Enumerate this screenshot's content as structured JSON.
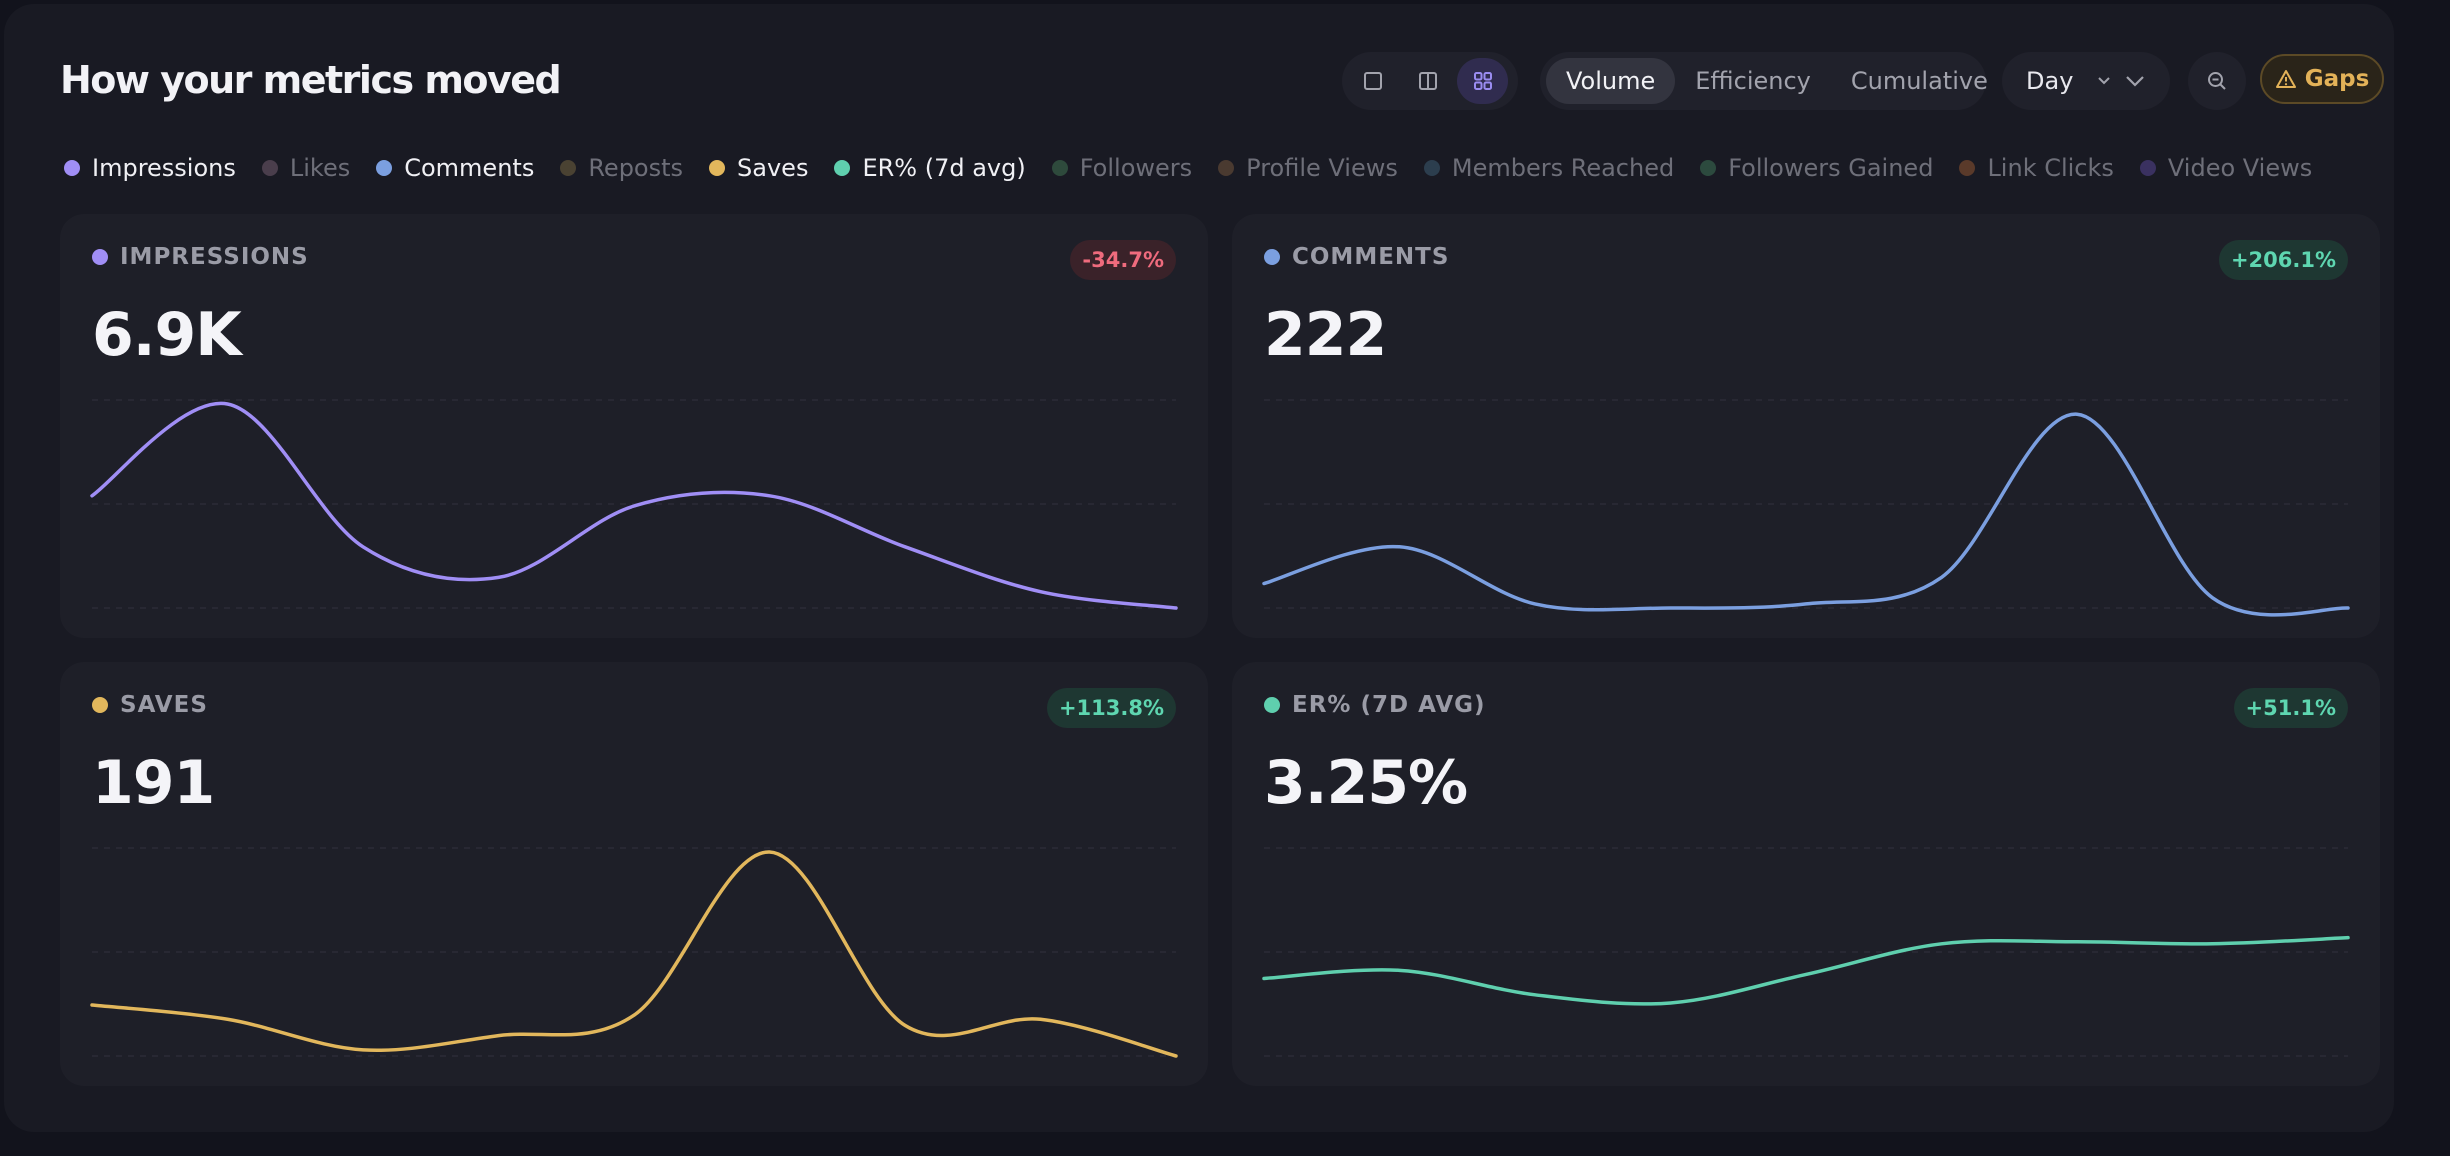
{
  "title": "How your metrics moved",
  "view_modes": [
    {
      "icon": "single-view-icon",
      "active": false
    },
    {
      "icon": "split-view-icon",
      "active": false
    },
    {
      "icon": "grid-view-icon",
      "active": true
    }
  ],
  "modes": [
    {
      "label": "Volume",
      "active": true
    },
    {
      "label": "Efficiency",
      "active": false
    },
    {
      "label": "Cumulative",
      "active": false
    }
  ],
  "granularity": {
    "label": "Day"
  },
  "zoom": {
    "icon": "zoom-out-icon"
  },
  "gaps": {
    "label": "Gaps",
    "icon": "warning-icon"
  },
  "legend": [
    {
      "label": "Impressions",
      "color": "#a08ef5",
      "active": true
    },
    {
      "label": "Likes",
      "color": "#4a3e4c",
      "active": false
    },
    {
      "label": "Comments",
      "color": "#7b9fe0",
      "active": true
    },
    {
      "label": "Reposts",
      "color": "#4a4232",
      "active": false
    },
    {
      "label": "Saves",
      "color": "#e2b75c",
      "active": true
    },
    {
      "label": "ER% (7d avg)",
      "color": "#5fcfae",
      "active": true
    },
    {
      "label": "Followers",
      "color": "#2e4a3c",
      "active": false
    },
    {
      "label": "Profile Views",
      "color": "#4a3a30",
      "active": false
    },
    {
      "label": "Members Reached",
      "color": "#2c3e4e",
      "active": false
    },
    {
      "label": "Followers Gained",
      "color": "#2c4a3e",
      "active": false
    },
    {
      "label": "Link Clicks",
      "color": "#5a3a2a",
      "active": false
    },
    {
      "label": "Video Views",
      "color": "#3a3160",
      "active": false
    }
  ],
  "cards": [
    {
      "label": "IMPRESSIONS",
      "value": "6.9K",
      "change": "-34.7%",
      "trend": "neg",
      "color": "#a08ef5"
    },
    {
      "label": "COMMENTS",
      "value": "222",
      "change": "+206.1%",
      "trend": "pos",
      "color": "#7b9fe0"
    },
    {
      "label": "SAVES",
      "value": "191",
      "change": "+113.8%",
      "trend": "pos",
      "color": "#e2b75c"
    },
    {
      "label": "ER% (7D AVG)",
      "value": "3.25%",
      "change": "+51.1%",
      "trend": "pos",
      "color": "#5fcfae"
    }
  ],
  "chart_data": [
    {
      "type": "line",
      "series": [
        {
          "values": [
            0.55,
            1.0,
            0.3,
            0.15,
            0.5,
            0.55,
            0.3,
            0.08,
            0.0
          ]
        }
      ],
      "ylim": [
        0,
        1
      ]
    },
    {
      "type": "line",
      "series": [
        {
          "values": [
            0.12,
            0.3,
            0.02,
            0.0,
            0.02,
            0.15,
            0.95,
            0.05,
            0.0
          ]
        }
      ],
      "ylim": [
        0,
        1
      ]
    },
    {
      "type": "line",
      "series": [
        {
          "values": [
            0.25,
            0.18,
            0.03,
            0.1,
            0.2,
            1.0,
            0.15,
            0.18,
            0.0
          ]
        }
      ],
      "ylim": [
        0,
        1
      ]
    },
    {
      "type": "line",
      "series": [
        {
          "values": [
            0.38,
            0.42,
            0.3,
            0.26,
            0.4,
            0.55,
            0.56,
            0.55,
            0.58
          ]
        }
      ],
      "ylim": [
        0,
        1
      ]
    }
  ]
}
